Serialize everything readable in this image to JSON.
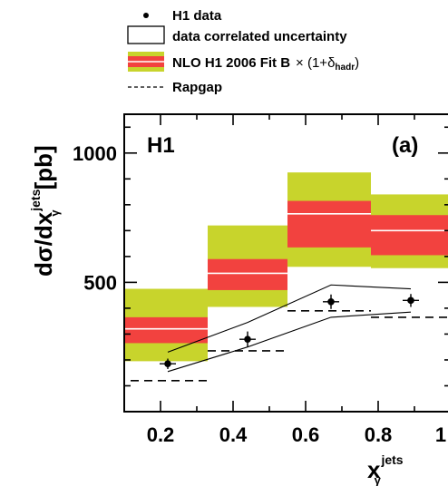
{
  "chart_data": {
    "type": "bar",
    "panel_label": "(a)",
    "experiment_label": "H1",
    "xlabel": "x",
    "xlabel_superscript": "jets",
    "xlabel_subscript": "γ",
    "ylabel": "dσ/dx",
    "ylabel_superscript": "jets",
    "ylabel_subscript": "γ",
    "ylabel_unit": "[pb]",
    "xlim": [
      0.1,
      1.0
    ],
    "ylim": [
      0,
      1150
    ],
    "x_ticks": [
      "0.2",
      "0.4",
      "0.6",
      "0.8",
      "1"
    ],
    "y_ticks": [
      "500",
      "1000"
    ],
    "bin_edges": [
      0.1,
      0.33,
      0.55,
      0.78,
      1.0
    ],
    "legend": {
      "data": "H1 data",
      "correlated": "data correlated uncertainty",
      "nlo": "NLO H1 2006 Fit B",
      "nlo_factor": "× (1+δ",
      "nlo_sub": "hadr",
      "nlo_close": ")",
      "rapgap": "Rapgap"
    },
    "colors": {
      "outer_band": "#c8d42c",
      "inner_band": "#f2423f",
      "central": "#ffffff"
    },
    "nlo_bins": [
      {
        "central": 320,
        "inner": [
          265,
          365
        ],
        "outer": [
          195,
          475
        ]
      },
      {
        "central": 535,
        "inner": [
          470,
          590
        ],
        "outer": [
          405,
          720
        ]
      },
      {
        "central": 765,
        "inner": [
          635,
          815
        ],
        "outer": [
          560,
          925
        ]
      },
      {
        "central": 700,
        "inner": [
          605,
          760
        ],
        "outer": [
          555,
          840
        ]
      }
    ],
    "h1_data": {
      "x": [
        0.22,
        0.44,
        0.67,
        0.89
      ],
      "y": [
        185,
        280,
        425,
        430
      ],
      "err": [
        20,
        30,
        28,
        25
      ]
    },
    "correlated_band": {
      "x": [
        0.22,
        0.44,
        0.67,
        0.89
      ],
      "upper": [
        230,
        345,
        490,
        475
      ],
      "lower": [
        155,
        250,
        365,
        385
      ]
    },
    "rapgap": [
      {
        "x": [
          0.1,
          0.33
        ],
        "y": 120
      },
      {
        "x": [
          0.33,
          0.55
        ],
        "y": 235
      },
      {
        "x": [
          0.55,
          0.78
        ],
        "y": 390
      },
      {
        "x": [
          0.78,
          1.0
        ],
        "y": 365
      }
    ]
  }
}
